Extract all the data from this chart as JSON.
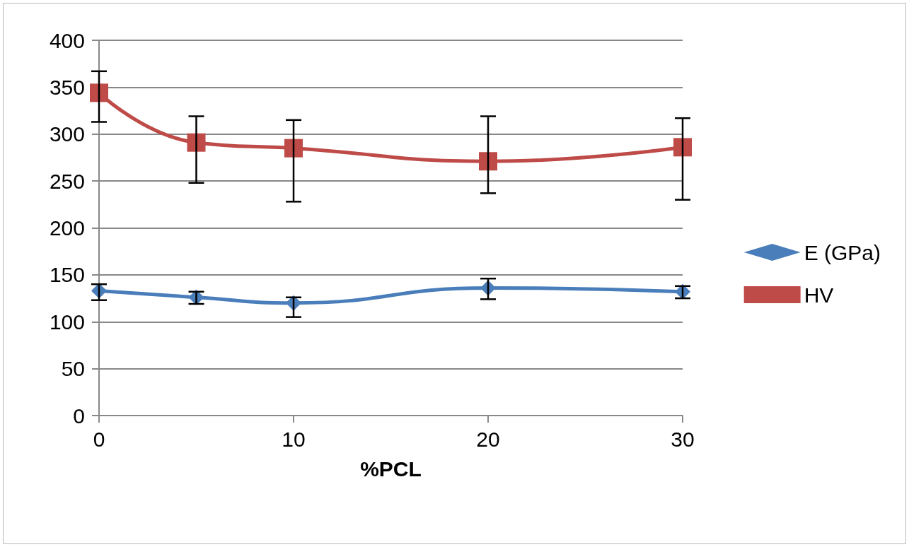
{
  "chart_data": {
    "type": "line",
    "xlabel": "%PCL",
    "x": [
      0,
      5,
      10,
      20,
      30
    ],
    "xlim": [
      0,
      30
    ],
    "xticks": [
      0,
      10,
      20,
      30
    ],
    "ylim": [
      0,
      400
    ],
    "yticks": [
      0,
      50,
      100,
      150,
      200,
      250,
      300,
      350,
      400
    ],
    "grid": "y",
    "legend": "right",
    "series": [
      {
        "name": "E (GPa)",
        "color": "#4a7ebb",
        "marker": "diamond",
        "values": [
          133,
          126,
          120,
          136,
          132
        ],
        "errors": [
          [
            123,
            140
          ],
          [
            119,
            132
          ],
          [
            105,
            126
          ],
          [
            124,
            146
          ],
          [
            125,
            138
          ]
        ]
      },
      {
        "name": "HV",
        "color": "#be4b48",
        "marker": "square",
        "values": [
          344,
          291,
          285,
          271,
          286
        ],
        "errors": [
          [
            313,
            367
          ],
          [
            248,
            319
          ],
          [
            228,
            315
          ],
          [
            237,
            319
          ],
          [
            230,
            317
          ]
        ]
      }
    ]
  }
}
